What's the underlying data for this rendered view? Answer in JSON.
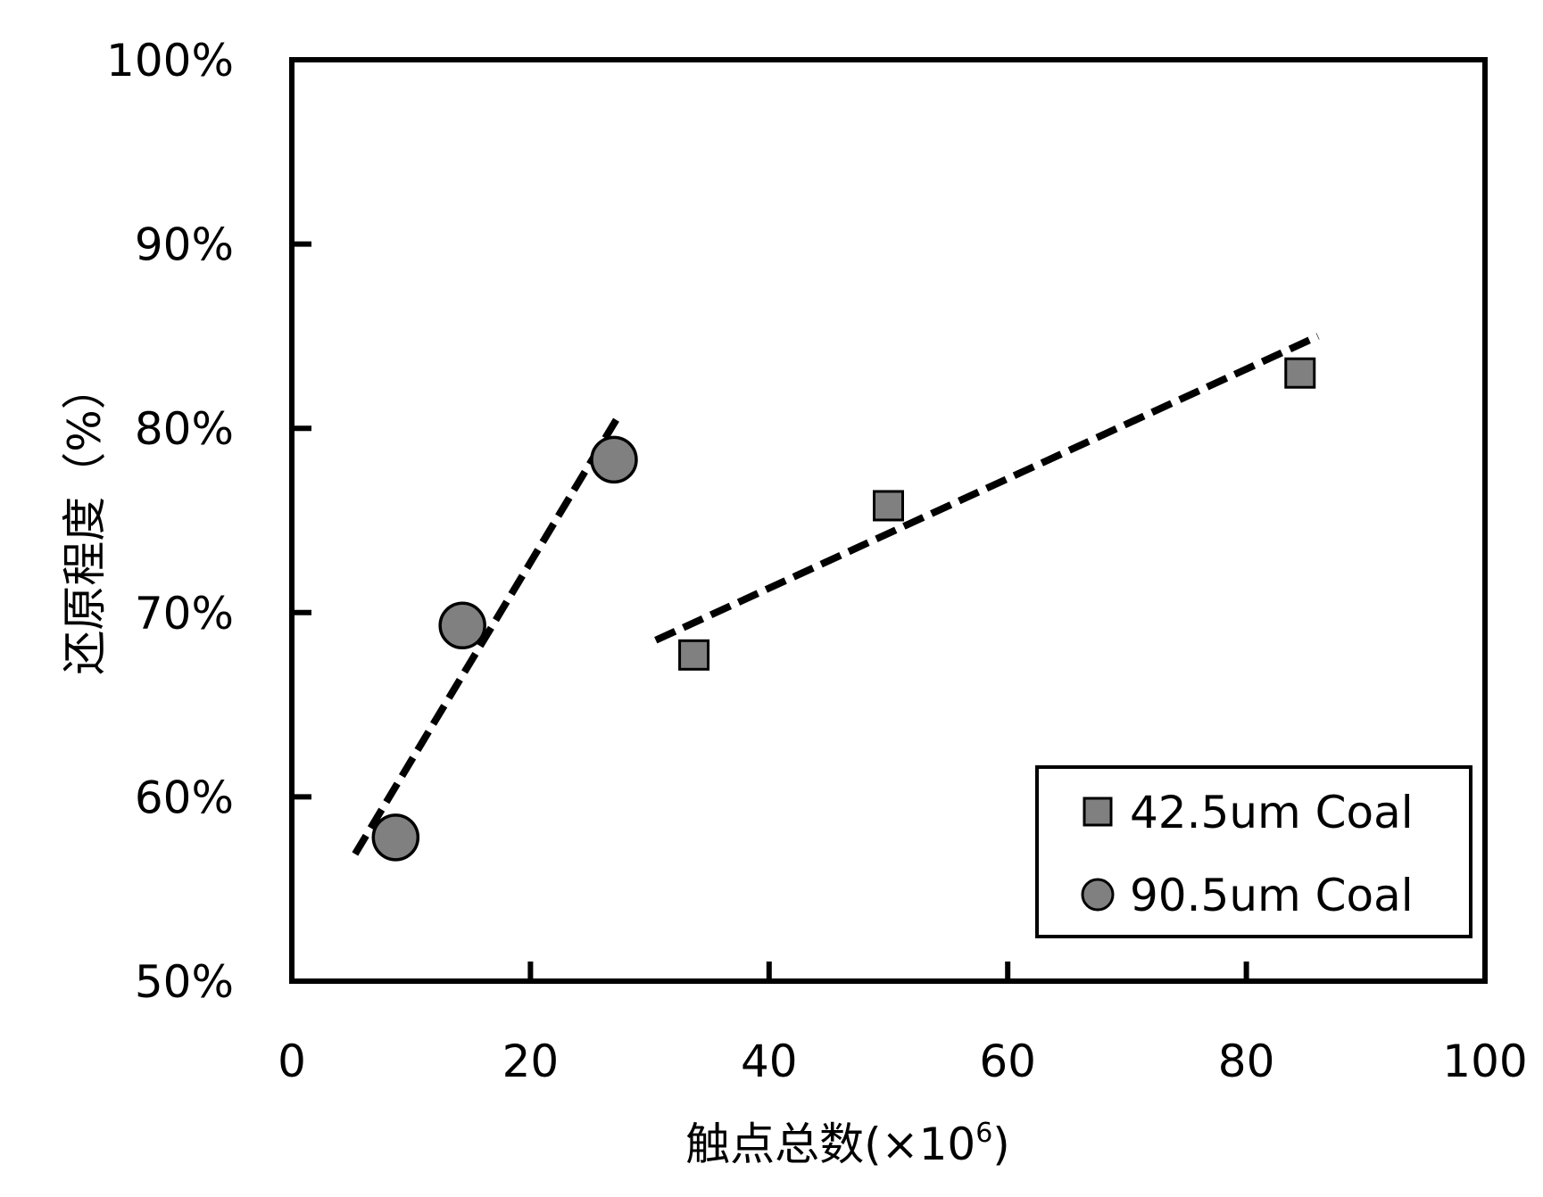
{
  "chart_data": {
    "type": "scatter",
    "title": "",
    "xlabel": "触点总数(×10",
    "xlabel_superscript": "6",
    "xlabel_suffix": ")",
    "ylabel": "还原程度（%）",
    "xlim": [
      0,
      100
    ],
    "ylim": [
      0.5,
      1.0
    ],
    "x_ticks": [
      0,
      20,
      40,
      60,
      80,
      100
    ],
    "x_tick_labels": [
      "0",
      "20",
      "40",
      "60",
      "80",
      "100"
    ],
    "y_ticks": [
      0.5,
      0.6,
      0.7,
      0.8,
      0.9,
      1.0
    ],
    "y_tick_labels": [
      "50%",
      "60%",
      "70%",
      "80%",
      "90%",
      "100%"
    ],
    "grid": false,
    "legend_position": "bottom-right",
    "series": [
      {
        "name": "42.5um Coal",
        "marker": "square",
        "color": "#808080",
        "x": [
          33.7,
          50.0,
          84.5
        ],
        "y": [
          0.677,
          0.758,
          0.83
        ],
        "trendline": {
          "x": [
            30.5,
            86.0
          ],
          "y": [
            0.685,
            0.85
          ]
        }
      },
      {
        "name": "90.5um Coal",
        "marker": "circle",
        "color": "#808080",
        "x": [
          8.7,
          14.3,
          27.0
        ],
        "y": [
          0.578,
          0.693,
          0.783
        ],
        "trendline": {
          "x": [
            5.3,
            27.5
          ],
          "y": [
            0.569,
            0.808
          ]
        }
      }
    ]
  }
}
